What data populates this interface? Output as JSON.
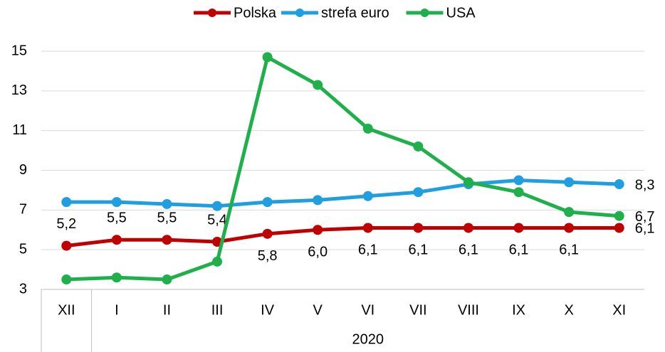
{
  "chart_data": {
    "type": "line",
    "categories": [
      "XII",
      "I",
      "II",
      "III",
      "IV",
      "V",
      "VI",
      "VII",
      "VIII",
      "IX",
      "X",
      "XI"
    ],
    "group_label": "2020",
    "series": [
      {
        "name": "Polska",
        "color": "#c00000",
        "values": [
          5.2,
          5.5,
          5.5,
          5.4,
          5.8,
          6.0,
          6.1,
          6.1,
          6.1,
          6.1,
          6.1,
          6.1
        ],
        "value_labels": [
          "5,2",
          "5,5",
          "5,5",
          "5,4",
          "5,8",
          "6,0",
          "6,1",
          "6,1",
          "6,1",
          "6,1",
          "6,1",
          "6,1"
        ]
      },
      {
        "name": "strefa euro",
        "color": "#1f9ee0",
        "values": [
          7.4,
          7.4,
          7.3,
          7.2,
          7.4,
          7.5,
          7.7,
          7.9,
          8.3,
          8.5,
          8.4,
          8.3
        ],
        "value_labels": [
          null,
          null,
          null,
          null,
          null,
          null,
          null,
          null,
          null,
          null,
          null,
          "8,3"
        ]
      },
      {
        "name": "USA",
        "color": "#1fb04b",
        "values": [
          3.5,
          3.6,
          3.5,
          4.4,
          14.7,
          13.3,
          11.1,
          10.2,
          8.4,
          7.9,
          6.9,
          6.7
        ],
        "value_labels": [
          null,
          null,
          null,
          null,
          null,
          null,
          null,
          null,
          null,
          null,
          null,
          "6,7"
        ]
      }
    ],
    "ylim": [
      3,
      15
    ],
    "yticks": [
      3,
      5,
      7,
      9,
      11,
      13,
      15
    ],
    "grid": true
  }
}
